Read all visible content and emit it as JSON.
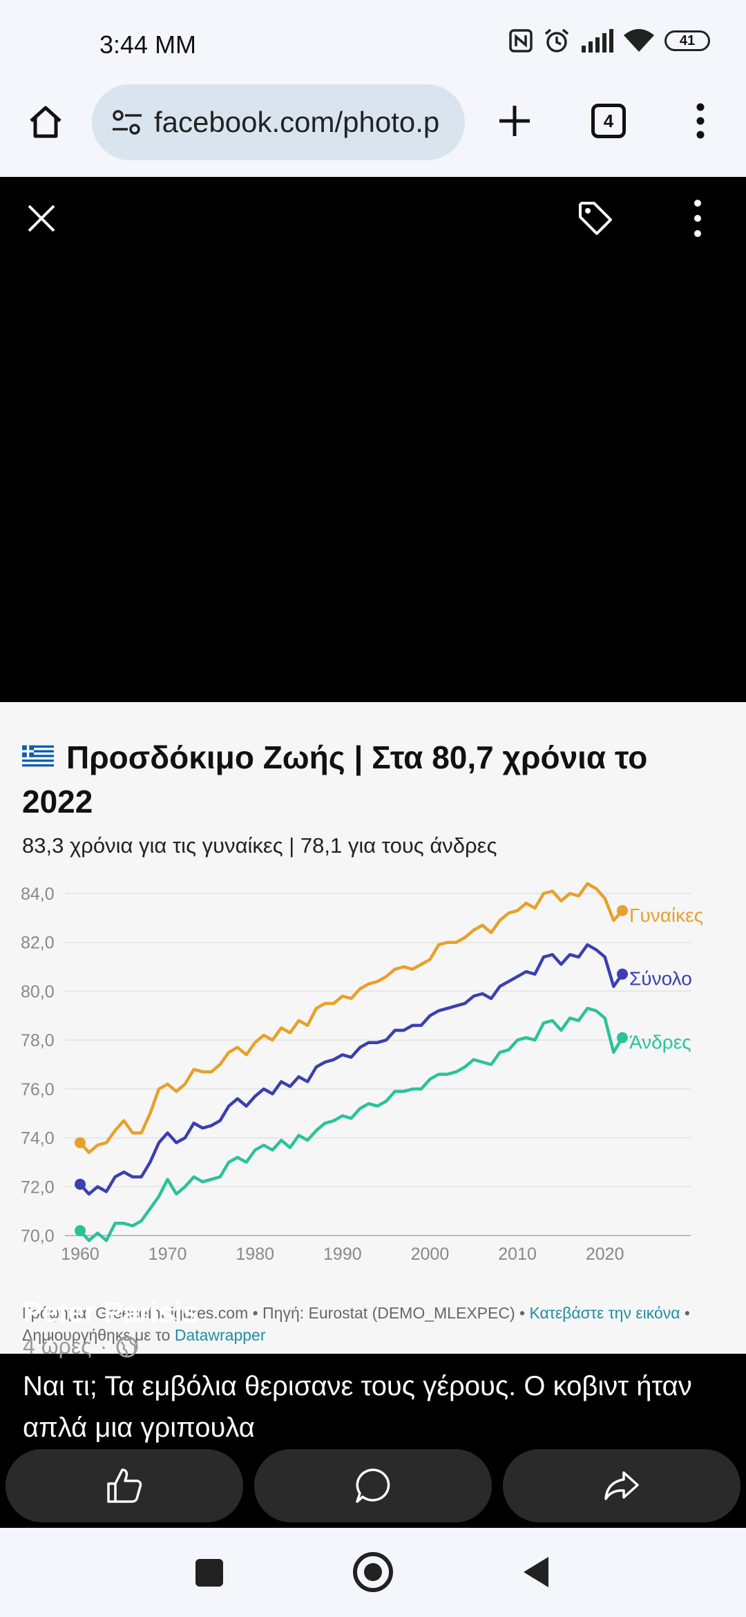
{
  "status_bar": {
    "time": "3:44 ΜΜ",
    "battery": "41",
    "icons": [
      "nfc-icon",
      "alarm-icon",
      "signal-icon",
      "wifi-icon",
      "battery-icon"
    ]
  },
  "browser": {
    "url": "facebook.com/photo.p",
    "tab_count": "4",
    "icons": [
      "home-icon",
      "site-settings-icon",
      "new-tab-icon",
      "tab-switcher-icon",
      "more-menu-icon"
    ]
  },
  "viewer": {
    "icons": [
      "close-icon",
      "tag-icon",
      "more-icon"
    ]
  },
  "chart_data": {
    "type": "line",
    "title": "Προσδόκιμο Ζωής | Στα 80,7 χρόνια το 2022",
    "subtitle": "83,3 χρόνια για τις γυναίκες | 78,1 για τους άνδρες",
    "xlabel": "",
    "ylabel": "",
    "xlim": [
      1960,
      2022
    ],
    "ylim": [
      70,
      84
    ],
    "x_ticks": [
      "1960",
      "1970",
      "1980",
      "1990",
      "2000",
      "2010",
      "2020"
    ],
    "y_ticks": [
      "70,0",
      "72,0",
      "74,0",
      "76,0",
      "78,0",
      "80,0",
      "82,0",
      "84,0"
    ],
    "grid": true,
    "legend": "line-end labels",
    "x": [
      1960,
      1961,
      1962,
      1963,
      1964,
      1965,
      1966,
      1967,
      1968,
      1969,
      1970,
      1971,
      1972,
      1973,
      1974,
      1975,
      1976,
      1977,
      1978,
      1979,
      1980,
      1981,
      1982,
      1983,
      1984,
      1985,
      1986,
      1987,
      1988,
      1989,
      1990,
      1991,
      1992,
      1993,
      1994,
      1995,
      1996,
      1997,
      1998,
      1999,
      2000,
      2001,
      2002,
      2003,
      2004,
      2005,
      2006,
      2007,
      2008,
      2009,
      2010,
      2011,
      2012,
      2013,
      2014,
      2015,
      2016,
      2017,
      2018,
      2019,
      2020,
      2021,
      2022
    ],
    "series": [
      {
        "name": "Γυναίκες",
        "color": "#e8a02b",
        "values": [
          73.8,
          73.4,
          73.7,
          73.8,
          74.3,
          74.7,
          74.2,
          74.2,
          75.0,
          76.0,
          76.2,
          75.9,
          76.2,
          76.8,
          76.7,
          76.7,
          77.0,
          77.5,
          77.7,
          77.4,
          77.9,
          78.2,
          78.0,
          78.5,
          78.3,
          78.8,
          78.6,
          79.3,
          79.5,
          79.5,
          79.8,
          79.7,
          80.1,
          80.3,
          80.4,
          80.6,
          80.9,
          81.0,
          80.9,
          81.1,
          81.3,
          81.9,
          82.0,
          82.0,
          82.2,
          82.5,
          82.7,
          82.4,
          82.9,
          83.2,
          83.3,
          83.6,
          83.4,
          84.0,
          84.1,
          83.7,
          84.0,
          83.9,
          84.4,
          84.2,
          83.8,
          82.9,
          83.3
        ]
      },
      {
        "name": "Σύνολο",
        "color": "#3b3fb1",
        "values": [
          72.1,
          71.7,
          72.0,
          71.8,
          72.4,
          72.6,
          72.4,
          72.4,
          73.0,
          73.8,
          74.2,
          73.8,
          74.0,
          74.6,
          74.4,
          74.5,
          74.7,
          75.3,
          75.6,
          75.3,
          75.7,
          76.0,
          75.8,
          76.3,
          76.1,
          76.5,
          76.3,
          76.9,
          77.1,
          77.2,
          77.4,
          77.3,
          77.7,
          77.9,
          77.9,
          78.0,
          78.4,
          78.4,
          78.6,
          78.6,
          79.0,
          79.2,
          79.3,
          79.4,
          79.5,
          79.8,
          79.9,
          79.7,
          80.2,
          80.4,
          80.6,
          80.8,
          80.7,
          81.4,
          81.5,
          81.1,
          81.5,
          81.4,
          81.9,
          81.7,
          81.4,
          80.2,
          80.7
        ]
      },
      {
        "name": "Άνδρες",
        "color": "#2bc29a",
        "values": [
          70.2,
          69.8,
          70.1,
          69.8,
          70.5,
          70.5,
          70.4,
          70.6,
          71.1,
          71.6,
          72.3,
          71.7,
          72.0,
          72.4,
          72.2,
          72.3,
          72.4,
          73.0,
          73.2,
          73.0,
          73.5,
          73.7,
          73.5,
          73.9,
          73.6,
          74.1,
          73.9,
          74.3,
          74.6,
          74.7,
          74.9,
          74.8,
          75.2,
          75.4,
          75.3,
          75.5,
          75.9,
          75.9,
          76.0,
          76.0,
          76.4,
          76.6,
          76.6,
          76.7,
          76.9,
          77.2,
          77.1,
          77.0,
          77.5,
          77.6,
          78.0,
          78.1,
          78.0,
          78.7,
          78.8,
          78.4,
          78.9,
          78.8,
          79.3,
          79.2,
          78.9,
          77.5,
          78.1
        ]
      }
    ]
  },
  "credits": {
    "line1_prefix": "Γράφημα: GreeceInFigures.com • Πηγή: Eurostat (DEMO_MLEXPEC) • ",
    "link1": "Κατεβάστε την εικόνα",
    "middle": " • Δημιουργήθηκε με το ",
    "link2": "Datawrapper"
  },
  "post": {
    "author": "Peter Parisis",
    "time": "4 ώρες",
    "text": "Ναι τι; Τα εμβόλια θερισανε τους γέρους. Ο κοβιντ ήταν απλά μια γριπουλα",
    "actions": [
      "like-icon",
      "comment-icon",
      "share-icon"
    ]
  },
  "nav": {
    "icons": [
      "recent-apps-icon",
      "home-nav-icon",
      "back-nav-icon"
    ]
  }
}
